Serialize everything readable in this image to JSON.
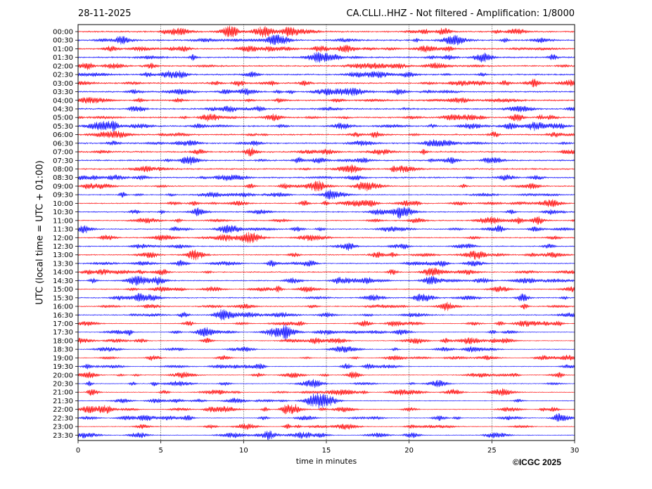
{
  "header": {
    "date": "28-11-2025",
    "station_info": "CA.CLLI..HHZ - Not filtered - Amplification: 1/8000"
  },
  "credit": "©ICGC 2025",
  "colors": {
    "red": "#ff0000",
    "blue": "#0000ff",
    "grid": "#000000"
  },
  "chart_data": {
    "type": "line",
    "title": "CA.CLLI..HHZ - Not filtered - Amplification: 1/8000",
    "xlabel": "time in minutes",
    "ylabel": "UTC (local time = UTC + 01:00)",
    "xlim": [
      0,
      30
    ],
    "x_ticks": [
      0,
      5,
      10,
      15,
      20,
      25,
      30
    ],
    "grid": true,
    "row_color_pattern": [
      "red",
      "blue"
    ],
    "rows": [
      "00:00",
      "00:30",
      "01:00",
      "01:30",
      "02:00",
      "02:30",
      "03:00",
      "03:30",
      "04:00",
      "04:30",
      "05:00",
      "05:30",
      "06:00",
      "06:30",
      "07:00",
      "07:30",
      "08:00",
      "08:30",
      "09:00",
      "09:30",
      "10:00",
      "10:30",
      "11:00",
      "11:30",
      "12:00",
      "12:30",
      "13:00",
      "13:30",
      "14:00",
      "14:30",
      "15:00",
      "15:30",
      "16:00",
      "16:30",
      "17:00",
      "17:30",
      "18:00",
      "18:30",
      "19:00",
      "19:30",
      "20:00",
      "20:30",
      "21:00",
      "21:30",
      "22:00",
      "22:30",
      "23:00",
      "23:30"
    ]
  }
}
